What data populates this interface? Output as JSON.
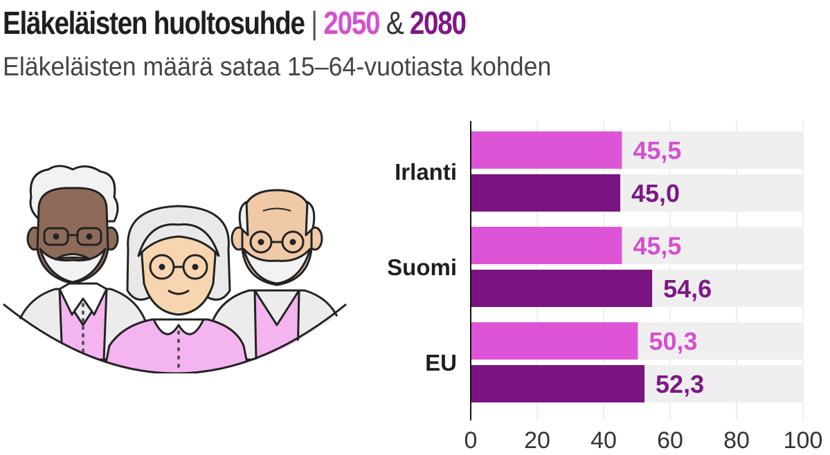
{
  "title": {
    "main": "Eläkeläisten huoltosuhde",
    "separator": "|",
    "year_a": "2050",
    "amp": "&",
    "year_b": "2080"
  },
  "subtitle": "Eläkeläisten määrä sataa 15–64-vuotiasta kohden",
  "colors": {
    "series_2050": "#dd55d6",
    "series_2050_label": "#d64fd0",
    "series_2080": "#7a1480",
    "series_2080_label": "#7e1786",
    "track": "#efefef",
    "axis": "#111111",
    "grid": "#dedede"
  },
  "chart_data": {
    "type": "bar",
    "orientation": "horizontal",
    "categories": [
      "Irlanti",
      "Suomi",
      "EU"
    ],
    "series": [
      {
        "name": "2050",
        "values": [
          45.5,
          45.5,
          50.3
        ],
        "labels": [
          "45,5",
          "45,5",
          "50,3"
        ]
      },
      {
        "name": "2080",
        "values": [
          45.0,
          54.6,
          52.3
        ],
        "labels": [
          "45,0",
          "54,6",
          "52,3"
        ]
      }
    ],
    "xlim": [
      0,
      100
    ],
    "xticks": [
      0,
      20,
      40,
      60,
      80,
      100
    ],
    "grid": true
  }
}
